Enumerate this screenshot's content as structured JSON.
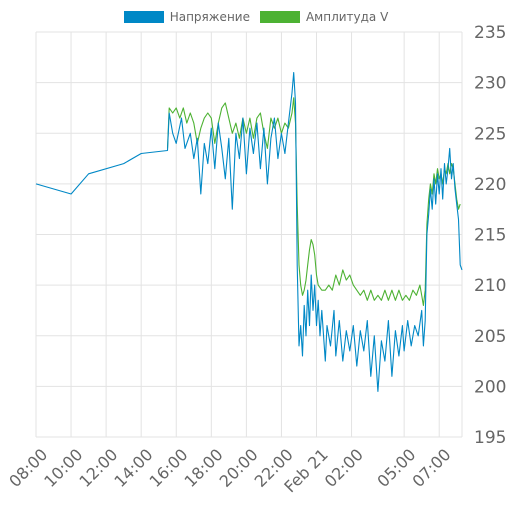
{
  "chart_data": {
    "type": "line",
    "title": "",
    "xlabel": "",
    "ylabel": "",
    "ylim": [
      195,
      235
    ],
    "xlim_hours": [
      8,
      32.3
    ],
    "yticks": [
      195,
      200,
      205,
      210,
      215,
      220,
      225,
      230,
      235
    ],
    "y_axis_position": "right",
    "grid": true,
    "legend_position": "top-center",
    "xtick_labels": [
      {
        "label": "08:00",
        "x": 8
      },
      {
        "label": "10:00",
        "x": 10
      },
      {
        "label": "12:00",
        "x": 12
      },
      {
        "label": "14:00",
        "x": 14
      },
      {
        "label": "16:00",
        "x": 16
      },
      {
        "label": "18:00",
        "x": 18
      },
      {
        "label": "20:00",
        "x": 20
      },
      {
        "label": "22:00",
        "x": 22
      },
      {
        "label": "Feb 21",
        "x": 24
      },
      {
        "label": "02:00",
        "x": 26
      },
      {
        "label": "05:00",
        "x": 29
      },
      {
        "label": "07:00",
        "x": 31
      }
    ],
    "series": [
      {
        "name": "Напряжение",
        "color": "#0088c6",
        "points": [
          [
            8.0,
            220.0
          ],
          [
            10.0,
            219.0
          ],
          [
            11.0,
            221.0
          ],
          [
            13.0,
            222.0
          ],
          [
            14.0,
            223.0
          ],
          [
            15.5,
            223.3
          ],
          [
            15.6,
            227.0
          ],
          [
            15.8,
            225.0
          ],
          [
            16.0,
            224.0
          ],
          [
            16.3,
            226.5
          ],
          [
            16.5,
            223.5
          ],
          [
            16.8,
            225.0
          ],
          [
            17.0,
            222.5
          ],
          [
            17.2,
            224.5
          ],
          [
            17.4,
            219.0
          ],
          [
            17.6,
            224.0
          ],
          [
            17.8,
            222.0
          ],
          [
            18.0,
            225.5
          ],
          [
            18.2,
            221.5
          ],
          [
            18.4,
            226.0
          ],
          [
            18.6,
            223.5
          ],
          [
            18.8,
            220.5
          ],
          [
            19.0,
            224.5
          ],
          [
            19.2,
            217.5
          ],
          [
            19.4,
            225.0
          ],
          [
            19.6,
            222.5
          ],
          [
            19.8,
            226.5
          ],
          [
            20.0,
            221.0
          ],
          [
            20.2,
            225.5
          ],
          [
            20.4,
            223.0
          ],
          [
            20.6,
            226.0
          ],
          [
            20.8,
            221.5
          ],
          [
            21.0,
            225.5
          ],
          [
            21.2,
            220.0
          ],
          [
            21.4,
            224.5
          ],
          [
            21.6,
            226.5
          ],
          [
            21.8,
            222.5
          ],
          [
            22.0,
            225.0
          ],
          [
            22.2,
            223.0
          ],
          [
            22.4,
            226.0
          ],
          [
            22.6,
            229.0
          ],
          [
            22.7,
            231.0
          ],
          [
            22.8,
            228.0
          ],
          [
            22.9,
            212.0
          ],
          [
            23.0,
            204.0
          ],
          [
            23.1,
            206.0
          ],
          [
            23.2,
            203.0
          ],
          [
            23.3,
            208.0
          ],
          [
            23.4,
            205.0
          ],
          [
            23.5,
            209.5
          ],
          [
            23.6,
            206.0
          ],
          [
            23.7,
            211.0
          ],
          [
            23.8,
            207.5
          ],
          [
            23.9,
            210.0
          ],
          [
            24.0,
            206.0
          ],
          [
            24.1,
            208.5
          ],
          [
            24.2,
            205.0
          ],
          [
            24.3,
            207.5
          ],
          [
            24.5,
            202.5
          ],
          [
            24.6,
            206.0
          ],
          [
            24.8,
            204.0
          ],
          [
            25.0,
            207.5
          ],
          [
            25.1,
            203.0
          ],
          [
            25.3,
            206.5
          ],
          [
            25.5,
            202.5
          ],
          [
            25.7,
            205.5
          ],
          [
            25.9,
            203.5
          ],
          [
            26.1,
            206.0
          ],
          [
            26.3,
            202.0
          ],
          [
            26.5,
            205.5
          ],
          [
            26.7,
            203.5
          ],
          [
            26.9,
            206.5
          ],
          [
            27.1,
            201.0
          ],
          [
            27.3,
            205.0
          ],
          [
            27.5,
            199.5
          ],
          [
            27.7,
            204.5
          ],
          [
            27.9,
            202.5
          ],
          [
            28.1,
            206.5
          ],
          [
            28.3,
            201.0
          ],
          [
            28.5,
            205.5
          ],
          [
            28.7,
            203.0
          ],
          [
            28.9,
            206.0
          ],
          [
            29.0,
            203.5
          ],
          [
            29.2,
            206.5
          ],
          [
            29.4,
            204.0
          ],
          [
            29.6,
            206.0
          ],
          [
            29.8,
            205.0
          ],
          [
            30.0,
            207.5
          ],
          [
            30.1,
            204.0
          ],
          [
            30.2,
            206.5
          ],
          [
            30.3,
            215.0
          ],
          [
            30.4,
            217.0
          ],
          [
            30.5,
            219.5
          ],
          [
            30.6,
            217.5
          ],
          [
            30.7,
            220.5
          ],
          [
            30.8,
            218.0
          ],
          [
            30.9,
            221.0
          ],
          [
            31.0,
            219.0
          ],
          [
            31.1,
            221.5
          ],
          [
            31.2,
            218.5
          ],
          [
            31.3,
            222.0
          ],
          [
            31.4,
            220.0
          ],
          [
            31.5,
            221.5
          ],
          [
            31.6,
            223.5
          ],
          [
            31.7,
            220.5
          ],
          [
            31.8,
            222.0
          ],
          [
            31.9,
            219.5
          ],
          [
            32.0,
            218.0
          ],
          [
            32.1,
            216.5
          ],
          [
            32.2,
            212.0
          ],
          [
            32.3,
            211.5
          ]
        ]
      },
      {
        "name": "Амплитуда V",
        "color": "#4db233",
        "points": [
          [
            15.5,
            223.5
          ],
          [
            15.6,
            227.5
          ],
          [
            15.8,
            227.0
          ],
          [
            16.0,
            227.5
          ],
          [
            16.2,
            226.5
          ],
          [
            16.4,
            227.5
          ],
          [
            16.6,
            226.0
          ],
          [
            16.8,
            227.0
          ],
          [
            17.0,
            226.0
          ],
          [
            17.2,
            224.0
          ],
          [
            17.4,
            225.5
          ],
          [
            17.6,
            226.5
          ],
          [
            17.8,
            227.0
          ],
          [
            18.0,
            226.5
          ],
          [
            18.2,
            224.0
          ],
          [
            18.4,
            226.0
          ],
          [
            18.6,
            227.5
          ],
          [
            18.8,
            228.0
          ],
          [
            19.0,
            226.5
          ],
          [
            19.2,
            225.0
          ],
          [
            19.4,
            226.0
          ],
          [
            19.6,
            224.5
          ],
          [
            19.8,
            226.5
          ],
          [
            20.0,
            225.0
          ],
          [
            20.2,
            226.5
          ],
          [
            20.4,
            224.5
          ],
          [
            20.6,
            226.5
          ],
          [
            20.8,
            227.0
          ],
          [
            21.0,
            225.0
          ],
          [
            21.2,
            223.5
          ],
          [
            21.4,
            226.5
          ],
          [
            21.6,
            225.5
          ],
          [
            21.8,
            226.5
          ],
          [
            22.0,
            225.0
          ],
          [
            22.2,
            226.0
          ],
          [
            22.4,
            225.5
          ],
          [
            22.6,
            227.0
          ],
          [
            22.7,
            228.5
          ],
          [
            22.8,
            226.0
          ],
          [
            22.9,
            218.0
          ],
          [
            23.0,
            212.0
          ],
          [
            23.1,
            210.0
          ],
          [
            23.2,
            209.0
          ],
          [
            23.3,
            209.5
          ],
          [
            23.4,
            210.5
          ],
          [
            23.5,
            212.0
          ],
          [
            23.6,
            213.5
          ],
          [
            23.7,
            214.5
          ],
          [
            23.8,
            214.0
          ],
          [
            23.9,
            213.0
          ],
          [
            24.0,
            211.0
          ],
          [
            24.1,
            210.0
          ],
          [
            24.3,
            209.5
          ],
          [
            24.5,
            209.5
          ],
          [
            24.7,
            210.0
          ],
          [
            24.9,
            209.5
          ],
          [
            25.1,
            211.0
          ],
          [
            25.3,
            210.0
          ],
          [
            25.5,
            211.5
          ],
          [
            25.7,
            210.5
          ],
          [
            25.9,
            211.0
          ],
          [
            26.1,
            210.0
          ],
          [
            26.3,
            209.5
          ],
          [
            26.5,
            209.0
          ],
          [
            26.7,
            209.5
          ],
          [
            26.9,
            208.5
          ],
          [
            27.1,
            209.5
          ],
          [
            27.3,
            208.5
          ],
          [
            27.5,
            209.0
          ],
          [
            27.7,
            208.5
          ],
          [
            27.9,
            209.5
          ],
          [
            28.1,
            208.5
          ],
          [
            28.3,
            209.5
          ],
          [
            28.5,
            208.5
          ],
          [
            28.7,
            209.5
          ],
          [
            28.9,
            208.5
          ],
          [
            29.1,
            209.0
          ],
          [
            29.3,
            208.5
          ],
          [
            29.5,
            209.5
          ],
          [
            29.7,
            209.0
          ],
          [
            29.9,
            210.0
          ],
          [
            30.0,
            209.0
          ],
          [
            30.1,
            208.0
          ],
          [
            30.2,
            209.5
          ],
          [
            30.3,
            216.0
          ],
          [
            30.4,
            218.5
          ],
          [
            30.5,
            220.0
          ],
          [
            30.6,
            219.0
          ],
          [
            30.7,
            221.0
          ],
          [
            30.8,
            220.0
          ],
          [
            30.9,
            221.5
          ],
          [
            31.0,
            220.5
          ],
          [
            31.1,
            221.0
          ],
          [
            31.2,
            220.0
          ],
          [
            31.3,
            221.5
          ],
          [
            31.4,
            221.0
          ],
          [
            31.5,
            222.0
          ],
          [
            31.6,
            221.0
          ],
          [
            31.7,
            222.0
          ],
          [
            31.8,
            221.5
          ],
          [
            31.9,
            220.0
          ],
          [
            32.0,
            218.5
          ],
          [
            32.1,
            217.5
          ],
          [
            32.2,
            218.0
          ]
        ]
      }
    ]
  }
}
